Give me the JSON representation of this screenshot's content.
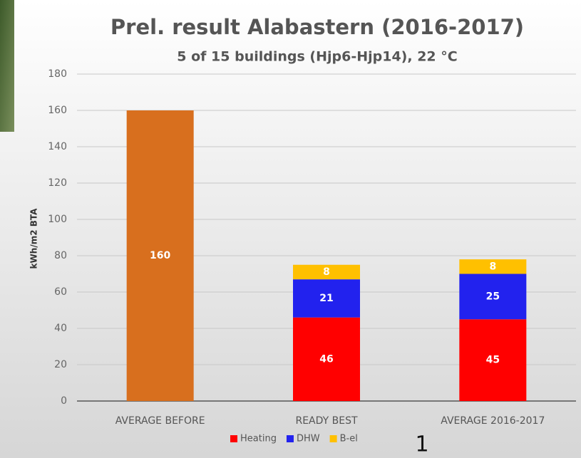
{
  "chart_data": {
    "type": "stacked_bar",
    "title": "Prel. result Alabastern (2016-2017)",
    "subtitle": "5 of 15 buildings (Hjp6-Hjp14), 22 °C",
    "y_label": "kWh/m2 BTA",
    "categories": [
      "AVERAGE BEFORE",
      "READY BEST",
      "AVERAGE 2016-2017"
    ],
    "series": [
      {
        "color": "#d86f1e",
        "values": [
          160,
          null,
          null
        ]
      },
      {
        "name": "Heating",
        "color": "#ff0000",
        "values": [
          null,
          46,
          45
        ]
      },
      {
        "name": "DHW",
        "color": "#2222ee",
        "values": [
          null,
          21,
          25
        ]
      },
      {
        "name": "B-el",
        "color": "#ffc000",
        "values": [
          null,
          8,
          8
        ]
      }
    ],
    "ylim": [
      0,
      180
    ],
    "yticks": [
      0,
      20,
      40,
      60,
      80,
      100,
      120,
      140,
      160,
      180
    ],
    "grid": true,
    "legend": "bottom"
  },
  "page_number": "1"
}
